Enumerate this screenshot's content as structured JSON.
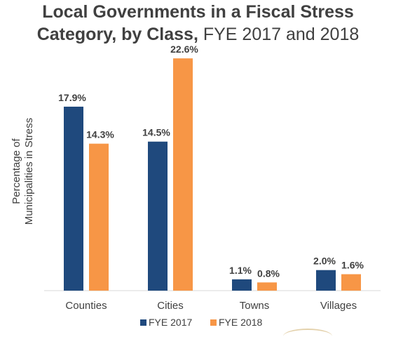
{
  "title": {
    "bold_part": "Local Governments in a Fiscal Stress",
    "bold_part2": "Category, by Class,",
    "regular_part": " FYE 2017 and 2018"
  },
  "colors": {
    "fye2017": "#1f497d",
    "fye2018": "#f79646",
    "text": "#404040",
    "axis": "#d9d9d9"
  },
  "chart_data": {
    "type": "bar",
    "title": "Local Governments in a Fiscal Stress Category, by Class, FYE 2017 and 2018",
    "ylabel": "Percentage of Municipalities in Stress",
    "xlabel": "",
    "categories": [
      "Counties",
      "Cities",
      "Towns",
      "Villages"
    ],
    "series": [
      {
        "name": "FYE 2017",
        "values": [
          17.9,
          14.5,
          1.1,
          2.0
        ],
        "labels": [
          "17.9%",
          "14.5%",
          "1.1%",
          "2.0%"
        ]
      },
      {
        "name": "FYE 2018",
        "values": [
          14.3,
          22.6,
          0.8,
          1.6
        ],
        "labels": [
          "14.3%",
          "22.6%",
          "0.8%",
          "1.6%"
        ]
      }
    ],
    "ylim": [
      0,
      25
    ],
    "grid": false,
    "legend_position": "bottom"
  },
  "ylabel_lines": [
    "Percentage of",
    "Municipalities in Stress"
  ]
}
